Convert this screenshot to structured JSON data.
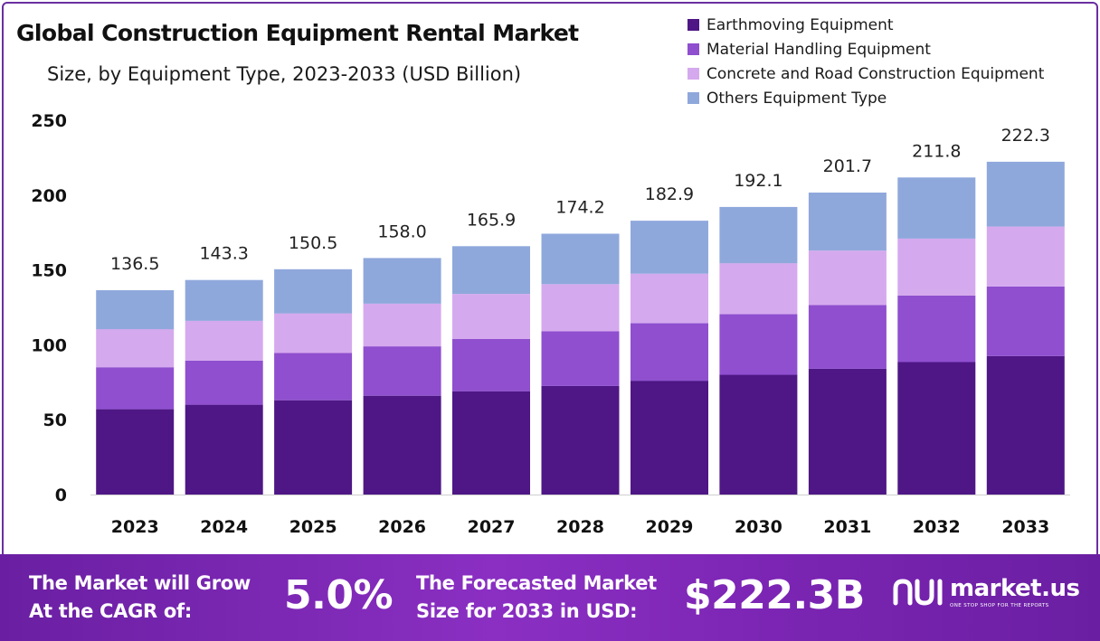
{
  "chart_data": {
    "type": "bar",
    "stacked": true,
    "title": "Global Construction Equipment Rental Market",
    "subtitle": "Size, by Equipment Type, 2023-2033 (USD Billion)",
    "categories": [
      "2023",
      "2024",
      "2025",
      "2026",
      "2027",
      "2028",
      "2029",
      "2030",
      "2031",
      "2032",
      "2033"
    ],
    "series": [
      {
        "name": "Earthmoving Equipment",
        "color": "#4e1785",
        "values": [
          57.0,
          60.0,
          63.0,
          66.0,
          69.0,
          72.5,
          76.0,
          80.0,
          84.0,
          88.5,
          92.5
        ]
      },
      {
        "name": "Material Handling Equipment",
        "color": "#8f4fcf",
        "values": [
          28.0,
          29.5,
          31.5,
          33.0,
          35.0,
          36.5,
          38.5,
          40.5,
          42.5,
          44.5,
          46.5
        ]
      },
      {
        "name": "Concrete and Road Construction Equipment",
        "color": "#d5a9ee",
        "values": [
          25.5,
          26.5,
          26.5,
          28.5,
          30.0,
          31.5,
          33.0,
          34.0,
          36.5,
          38.0,
          40.0
        ]
      },
      {
        "name": "Others Equipment Type",
        "color": "#8fa8dc",
        "values": [
          26.0,
          27.3,
          29.5,
          30.5,
          31.9,
          33.7,
          35.4,
          37.6,
          38.7,
          40.8,
          43.3
        ]
      }
    ],
    "totals": [
      "136.5",
      "143.3",
      "150.5",
      "158.0",
      "165.9",
      "174.2",
      "182.9",
      "192.1",
      "201.7",
      "211.8",
      "222.3"
    ],
    "yticks": [
      "0",
      "50",
      "100",
      "150",
      "200",
      "250"
    ],
    "ylim": [
      0,
      250
    ],
    "xlabel": "",
    "ylabel": "",
    "legend_position": "top-right",
    "grid": false
  },
  "footer": {
    "cagr_line1": "The Market will Grow",
    "cagr_line2": "At the CAGR of:",
    "cagr_value": "5.0%",
    "forecast_line1": "The Forecasted Market",
    "forecast_line2": "Size for 2033 in USD:",
    "forecast_value": "$222.3B",
    "brand_name": "market.us",
    "brand_tagline": "ONE STOP SHOP FOR THE REPORTS",
    "background_color": "#7a25b2"
  }
}
